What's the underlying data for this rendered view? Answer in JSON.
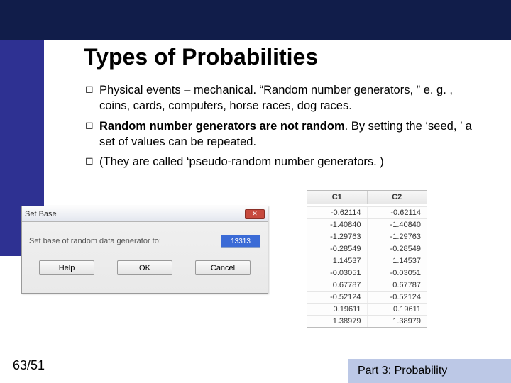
{
  "colors": {
    "topband": "#111d4a",
    "sidebar": "#2e3192",
    "footerband": "#bcc8e6",
    "background": "#ffffff"
  },
  "title": "Types of Probabilities",
  "bullets": [
    {
      "pre": "Physical events – mechanical. “Random number generators, ” e. g. , coins, cards, computers, horse races, dog races.",
      "bold": "",
      "post": ""
    },
    {
      "pre": "",
      "bold": "Random number generators are not random",
      "post": ". By setting the ‘seed, ’ a set of values can be repeated."
    },
    {
      "pre": "(They are called ‘pseudo-random number generators. )",
      "bold": "",
      "post": ""
    }
  ],
  "dialog": {
    "title": "Set Base",
    "label": "Set base of random data generator to:",
    "value": "13313",
    "buttons": {
      "help": "Help",
      "ok": "OK",
      "cancel": "Cancel"
    }
  },
  "table": {
    "columns": [
      "C1",
      "C2"
    ],
    "rows": [
      [
        "-0.62114",
        "-0.62114"
      ],
      [
        "-1.40840",
        "-1.40840"
      ],
      [
        "-1.29763",
        "-1.29763"
      ],
      [
        "-0.28549",
        "-0.28549"
      ],
      [
        "1.14537",
        "1.14537"
      ],
      [
        "-0.03051",
        "-0.03051"
      ],
      [
        "0.67787",
        "0.67787"
      ],
      [
        "-0.52124",
        "-0.52124"
      ],
      [
        "0.19611",
        "0.19611"
      ],
      [
        "1.38979",
        "1.38979"
      ]
    ]
  },
  "pagenum": "63/51",
  "footer": "Part 3: Probability"
}
